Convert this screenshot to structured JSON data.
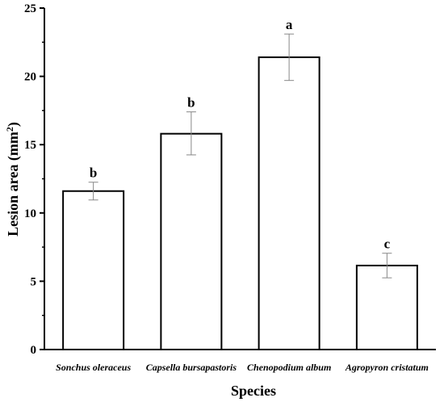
{
  "chart_data": {
    "type": "bar",
    "categories": [
      "Sonchus oleraceus",
      "Capsella bursapastoris",
      "Chenopodium album",
      "Agropyron cristatum"
    ],
    "values": [
      11.6,
      15.8,
      21.4,
      6.15
    ],
    "error_low": [
      10.95,
      14.25,
      19.7,
      5.25
    ],
    "error_high": [
      12.25,
      17.4,
      23.1,
      7.05
    ],
    "significance": [
      "b",
      "b",
      "a",
      "c"
    ],
    "xlabel": "Species",
    "ylabel_main": "Lesion area (mm",
    "ylabel_sup": "2",
    "ylabel_end": ")",
    "ylim": [
      0,
      25
    ],
    "yticks": [
      "0",
      "5",
      "10",
      "15",
      "20",
      "25"
    ],
    "grid": false,
    "colors": {
      "bar_fill": "#ffffff",
      "bar_stroke": "#000000",
      "error_bar": "#888888",
      "axis": "#000000"
    }
  }
}
